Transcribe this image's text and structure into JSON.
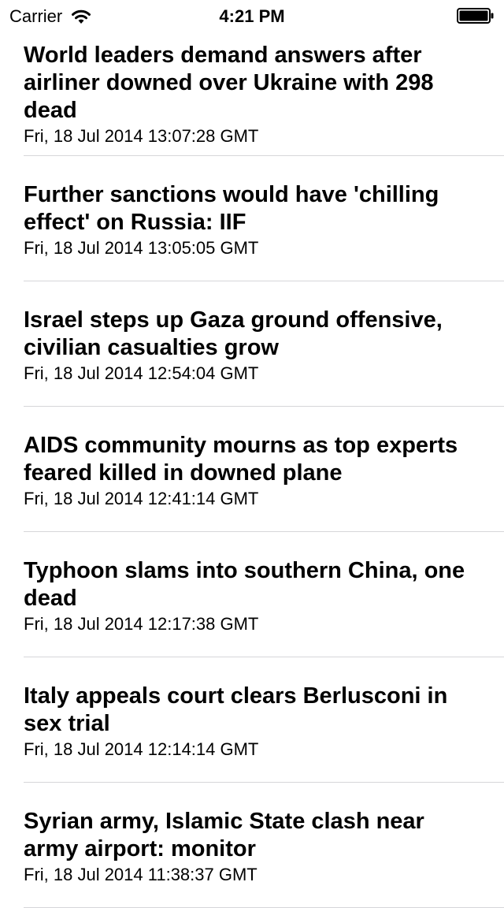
{
  "status_bar": {
    "carrier": "Carrier",
    "time": "4:21 PM",
    "wifi_icon": "wifi-icon",
    "battery_icon": "battery-icon"
  },
  "feed": {
    "items": [
      {
        "title": "World leaders demand answers after airliner downed over Ukraine with 298 dead",
        "date": "Fri, 18 Jul 2014 13:07:28 GMT"
      },
      {
        "title": "Further sanctions would have 'chilling effect' on Russia: IIF",
        "date": "Fri, 18 Jul 2014 13:05:05 GMT"
      },
      {
        "title": "Israel steps up Gaza ground offensive, civilian casualties grow",
        "date": "Fri, 18 Jul 2014 12:54:04 GMT"
      },
      {
        "title": "AIDS community mourns as top experts feared killed in downed plane",
        "date": "Fri, 18 Jul 2014 12:41:14 GMT"
      },
      {
        "title": "Typhoon slams into southern China, one dead",
        "date": "Fri, 18 Jul 2014 12:17:38 GMT"
      },
      {
        "title": "Italy appeals court clears Berlusconi in sex trial",
        "date": "Fri, 18 Jul 2014 12:14:14 GMT"
      },
      {
        "title": "Syrian army, Islamic State clash near army airport: monitor",
        "date": "Fri, 18 Jul 2014 11:38:37 GMT"
      }
    ]
  }
}
